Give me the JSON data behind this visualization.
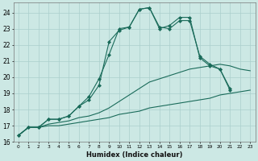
{
  "xlabel": "Humidex (Indice chaleur)",
  "bg_color": "#cce8e4",
  "grid_color": "#aacfcc",
  "line_color": "#1a6b5a",
  "xlim": [
    -0.5,
    23.5
  ],
  "ylim": [
    16.0,
    24.6
  ],
  "series_bottom_x": [
    0,
    1,
    2,
    3,
    4,
    5,
    6,
    7,
    8,
    9,
    10,
    11,
    12,
    13,
    14,
    15,
    16,
    17,
    18,
    19,
    20,
    21,
    22,
    23
  ],
  "series_bottom_y": [
    16.4,
    16.9,
    16.9,
    17.0,
    17.0,
    17.1,
    17.2,
    17.3,
    17.4,
    17.5,
    17.7,
    17.8,
    17.9,
    18.1,
    18.2,
    18.3,
    18.4,
    18.5,
    18.6,
    18.7,
    18.9,
    19.0,
    19.1,
    19.2
  ],
  "series_mid_x": [
    0,
    1,
    2,
    3,
    4,
    5,
    6,
    7,
    8,
    9,
    10,
    11,
    12,
    13,
    14,
    15,
    16,
    17,
    18,
    19,
    20,
    21,
    22,
    23
  ],
  "series_mid_y": [
    16.4,
    16.9,
    16.9,
    17.1,
    17.2,
    17.3,
    17.5,
    17.6,
    17.8,
    18.1,
    18.5,
    18.9,
    19.3,
    19.7,
    19.9,
    20.1,
    20.3,
    20.5,
    20.6,
    20.7,
    20.8,
    20.7,
    20.5,
    20.4
  ],
  "series_top1_x": [
    0,
    1,
    2,
    3,
    4,
    5,
    6,
    7,
    8,
    9,
    10,
    11,
    12,
    13,
    14,
    15,
    16,
    17,
    18,
    19,
    20,
    21
  ],
  "series_top1_y": [
    16.4,
    16.9,
    16.9,
    17.4,
    17.4,
    17.6,
    18.2,
    18.8,
    19.9,
    21.4,
    23.0,
    23.1,
    24.2,
    24.3,
    23.1,
    23.0,
    23.5,
    23.5,
    21.3,
    20.8,
    20.5,
    19.2
  ],
  "series_top2_x": [
    0,
    1,
    2,
    3,
    4,
    5,
    6,
    7,
    8,
    9,
    10,
    11,
    12,
    13,
    14,
    15,
    16,
    17,
    18,
    19,
    20,
    21
  ],
  "series_top2_y": [
    16.4,
    16.9,
    16.9,
    17.4,
    17.4,
    17.6,
    18.2,
    18.6,
    19.5,
    22.2,
    22.9,
    23.1,
    24.2,
    24.3,
    23.0,
    23.2,
    23.7,
    23.7,
    21.2,
    20.7,
    20.5,
    19.3
  ]
}
